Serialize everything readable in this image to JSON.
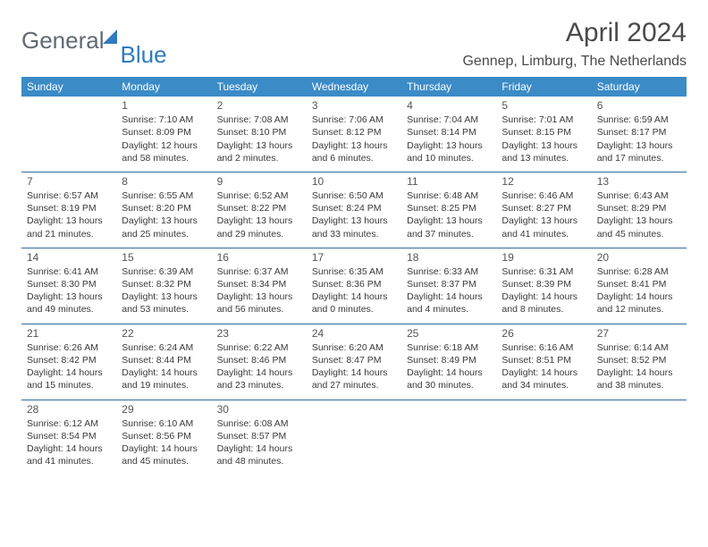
{
  "logo": {
    "general": "General",
    "blue": "Blue"
  },
  "title": "April 2024",
  "location": "Gennep, Limburg, The Netherlands",
  "day_headers": [
    "Sunday",
    "Monday",
    "Tuesday",
    "Wednesday",
    "Thursday",
    "Friday",
    "Saturday"
  ],
  "colors": {
    "header_bg": "#3b8bc7",
    "header_text": "#ffffff",
    "rule": "#2f6aa0",
    "logo_gray": "#5f6a72",
    "logo_blue": "#2f7bbf",
    "body_text": "#3a3a3a",
    "background": "#ffffff"
  },
  "typography": {
    "title_fontsize": 30,
    "location_fontsize": 16,
    "dayheader_fontsize": 12,
    "cell_fontsize": 10.5
  },
  "weeks": [
    [
      null,
      {
        "n": "1",
        "sr": "Sunrise: 7:10 AM",
        "ss": "Sunset: 8:09 PM",
        "d1": "Daylight: 12 hours",
        "d2": "and 58 minutes."
      },
      {
        "n": "2",
        "sr": "Sunrise: 7:08 AM",
        "ss": "Sunset: 8:10 PM",
        "d1": "Daylight: 13 hours",
        "d2": "and 2 minutes."
      },
      {
        "n": "3",
        "sr": "Sunrise: 7:06 AM",
        "ss": "Sunset: 8:12 PM",
        "d1": "Daylight: 13 hours",
        "d2": "and 6 minutes."
      },
      {
        "n": "4",
        "sr": "Sunrise: 7:04 AM",
        "ss": "Sunset: 8:14 PM",
        "d1": "Daylight: 13 hours",
        "d2": "and 10 minutes."
      },
      {
        "n": "5",
        "sr": "Sunrise: 7:01 AM",
        "ss": "Sunset: 8:15 PM",
        "d1": "Daylight: 13 hours",
        "d2": "and 13 minutes."
      },
      {
        "n": "6",
        "sr": "Sunrise: 6:59 AM",
        "ss": "Sunset: 8:17 PM",
        "d1": "Daylight: 13 hours",
        "d2": "and 17 minutes."
      }
    ],
    [
      {
        "n": "7",
        "sr": "Sunrise: 6:57 AM",
        "ss": "Sunset: 8:19 PM",
        "d1": "Daylight: 13 hours",
        "d2": "and 21 minutes."
      },
      {
        "n": "8",
        "sr": "Sunrise: 6:55 AM",
        "ss": "Sunset: 8:20 PM",
        "d1": "Daylight: 13 hours",
        "d2": "and 25 minutes."
      },
      {
        "n": "9",
        "sr": "Sunrise: 6:52 AM",
        "ss": "Sunset: 8:22 PM",
        "d1": "Daylight: 13 hours",
        "d2": "and 29 minutes."
      },
      {
        "n": "10",
        "sr": "Sunrise: 6:50 AM",
        "ss": "Sunset: 8:24 PM",
        "d1": "Daylight: 13 hours",
        "d2": "and 33 minutes."
      },
      {
        "n": "11",
        "sr": "Sunrise: 6:48 AM",
        "ss": "Sunset: 8:25 PM",
        "d1": "Daylight: 13 hours",
        "d2": "and 37 minutes."
      },
      {
        "n": "12",
        "sr": "Sunrise: 6:46 AM",
        "ss": "Sunset: 8:27 PM",
        "d1": "Daylight: 13 hours",
        "d2": "and 41 minutes."
      },
      {
        "n": "13",
        "sr": "Sunrise: 6:43 AM",
        "ss": "Sunset: 8:29 PM",
        "d1": "Daylight: 13 hours",
        "d2": "and 45 minutes."
      }
    ],
    [
      {
        "n": "14",
        "sr": "Sunrise: 6:41 AM",
        "ss": "Sunset: 8:30 PM",
        "d1": "Daylight: 13 hours",
        "d2": "and 49 minutes."
      },
      {
        "n": "15",
        "sr": "Sunrise: 6:39 AM",
        "ss": "Sunset: 8:32 PM",
        "d1": "Daylight: 13 hours",
        "d2": "and 53 minutes."
      },
      {
        "n": "16",
        "sr": "Sunrise: 6:37 AM",
        "ss": "Sunset: 8:34 PM",
        "d1": "Daylight: 13 hours",
        "d2": "and 56 minutes."
      },
      {
        "n": "17",
        "sr": "Sunrise: 6:35 AM",
        "ss": "Sunset: 8:36 PM",
        "d1": "Daylight: 14 hours",
        "d2": "and 0 minutes."
      },
      {
        "n": "18",
        "sr": "Sunrise: 6:33 AM",
        "ss": "Sunset: 8:37 PM",
        "d1": "Daylight: 14 hours",
        "d2": "and 4 minutes."
      },
      {
        "n": "19",
        "sr": "Sunrise: 6:31 AM",
        "ss": "Sunset: 8:39 PM",
        "d1": "Daylight: 14 hours",
        "d2": "and 8 minutes."
      },
      {
        "n": "20",
        "sr": "Sunrise: 6:28 AM",
        "ss": "Sunset: 8:41 PM",
        "d1": "Daylight: 14 hours",
        "d2": "and 12 minutes."
      }
    ],
    [
      {
        "n": "21",
        "sr": "Sunrise: 6:26 AM",
        "ss": "Sunset: 8:42 PM",
        "d1": "Daylight: 14 hours",
        "d2": "and 15 minutes."
      },
      {
        "n": "22",
        "sr": "Sunrise: 6:24 AM",
        "ss": "Sunset: 8:44 PM",
        "d1": "Daylight: 14 hours",
        "d2": "and 19 minutes."
      },
      {
        "n": "23",
        "sr": "Sunrise: 6:22 AM",
        "ss": "Sunset: 8:46 PM",
        "d1": "Daylight: 14 hours",
        "d2": "and 23 minutes."
      },
      {
        "n": "24",
        "sr": "Sunrise: 6:20 AM",
        "ss": "Sunset: 8:47 PM",
        "d1": "Daylight: 14 hours",
        "d2": "and 27 minutes."
      },
      {
        "n": "25",
        "sr": "Sunrise: 6:18 AM",
        "ss": "Sunset: 8:49 PM",
        "d1": "Daylight: 14 hours",
        "d2": "and 30 minutes."
      },
      {
        "n": "26",
        "sr": "Sunrise: 6:16 AM",
        "ss": "Sunset: 8:51 PM",
        "d1": "Daylight: 14 hours",
        "d2": "and 34 minutes."
      },
      {
        "n": "27",
        "sr": "Sunrise: 6:14 AM",
        "ss": "Sunset: 8:52 PM",
        "d1": "Daylight: 14 hours",
        "d2": "and 38 minutes."
      }
    ],
    [
      {
        "n": "28",
        "sr": "Sunrise: 6:12 AM",
        "ss": "Sunset: 8:54 PM",
        "d1": "Daylight: 14 hours",
        "d2": "and 41 minutes."
      },
      {
        "n": "29",
        "sr": "Sunrise: 6:10 AM",
        "ss": "Sunset: 8:56 PM",
        "d1": "Daylight: 14 hours",
        "d2": "and 45 minutes."
      },
      {
        "n": "30",
        "sr": "Sunrise: 6:08 AM",
        "ss": "Sunset: 8:57 PM",
        "d1": "Daylight: 14 hours",
        "d2": "and 48 minutes."
      },
      null,
      null,
      null,
      null
    ]
  ]
}
